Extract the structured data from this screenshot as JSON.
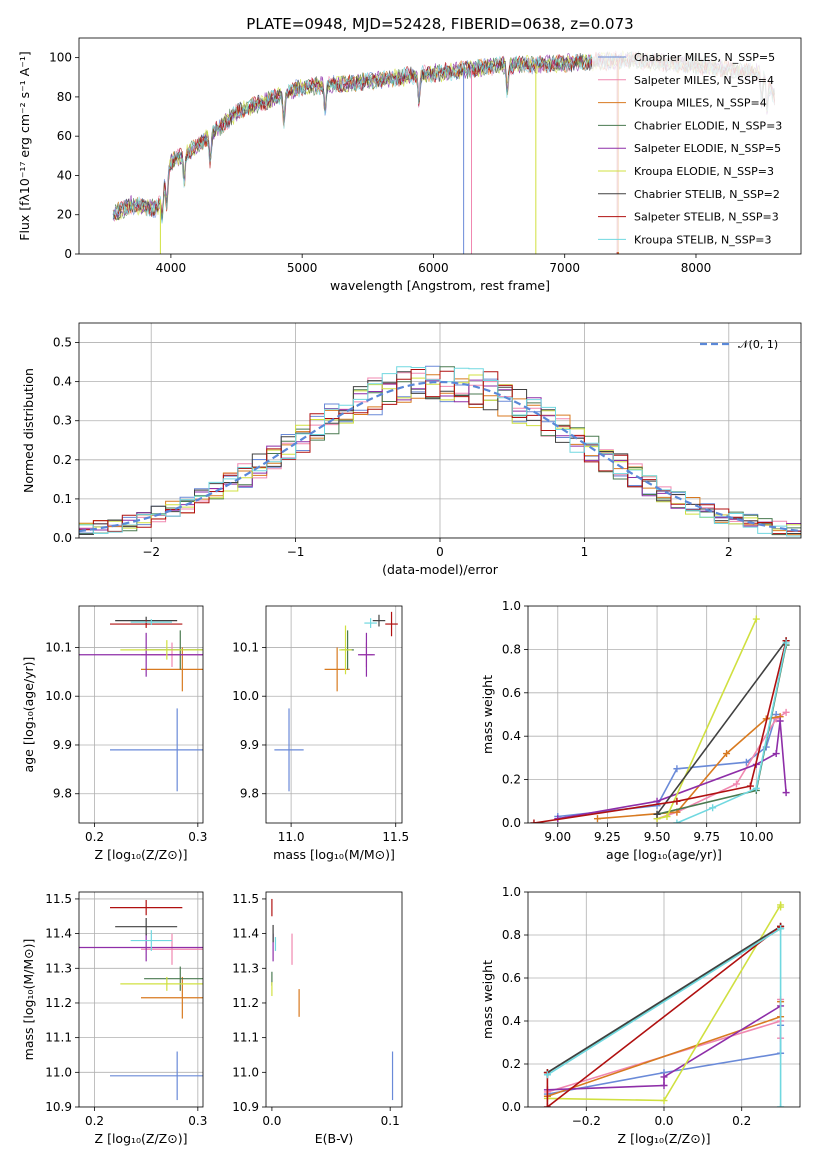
{
  "figure": {
    "title": "PLATE=0948, MJD=52428, FIBERID=0638, z=0.073"
  },
  "series_styles": [
    {
      "name": "Chabrier MILES",
      "nssp": "5",
      "color": "#6a8ad8"
    },
    {
      "name": "Salpeter MILES",
      "nssp": "4",
      "color": "#f088b0"
    },
    {
      "name": "Kroupa MILES",
      "nssp": "4",
      "color": "#d87a20"
    },
    {
      "name": "Chabrier ELODIE",
      "nssp": "3",
      "color": "#4a7a50"
    },
    {
      "name": "Salpeter ELODIE",
      "nssp": "5",
      "color": "#8e2ea8"
    },
    {
      "name": "Kroupa ELODIE",
      "nssp": "3",
      "color": "#d0e040"
    },
    {
      "name": "Chabrier STELIB",
      "nssp": "2",
      "color": "#404040"
    },
    {
      "name": "Salpeter STELIB",
      "nssp": "3",
      "color": "#b01010"
    },
    {
      "name": "Kroupa STELIB",
      "nssp": "3",
      "color": "#70d8e0"
    }
  ],
  "chart_data": [
    {
      "id": "spectrum",
      "type": "line",
      "xlabel": "wavelength [Angstrom, rest frame]",
      "ylabel": "Flux [fλ10⁻¹⁷ erg cm⁻² s⁻¹ A⁻¹]",
      "xlim": [
        3300,
        8800
      ],
      "ylim": [
        0,
        110
      ],
      "xticks": [
        "4000",
        "5000",
        "6000",
        "7000",
        "8000"
      ],
      "yticks": [
        "0",
        "20",
        "40",
        "60",
        "80",
        "100"
      ],
      "legend_placement": "right",
      "legend": [
        "Chabrier MILES, N_SSP=5",
        "Salpeter MILES, N_SSP=4",
        "Kroupa MILES, N_SSP=4",
        "Chabrier ELODIE, N_SSP=3",
        "Salpeter ELODIE, N_SSP=5",
        "Kroupa ELODIE, N_SSP=3",
        "Chabrier STELIB, N_SSP=2",
        "Salpeter STELIB, N_SSP=3",
        "Kroupa STELIB, N_SSP=3"
      ],
      "continuum_x": [
        3560,
        3700,
        3900,
        4000,
        4200,
        4500,
        5000,
        5500,
        6000,
        6500,
        7000,
        7500,
        8000,
        8500,
        8600
      ],
      "continuum_y": [
        20,
        25,
        23,
        47,
        55,
        72,
        85,
        88,
        92,
        96,
        97,
        99,
        96,
        92,
        80
      ],
      "features_x": [
        3934,
        3969,
        4102,
        4300,
        4861,
        5175,
        5890,
        6563,
        8500,
        8542
      ],
      "spikes": [
        {
          "series": "Kroupa ELODIE",
          "x": 3920,
          "y": 0
        },
        {
          "series": "Chabrier MILES",
          "x": 6230,
          "y": 0
        },
        {
          "series": "Salpeter MILES",
          "x": 6290,
          "y": 0
        },
        {
          "series": "Kroupa ELODIE",
          "x": 6780,
          "y": 0
        },
        {
          "series": "Salpeter STELIB",
          "x": 7400,
          "y": 0
        },
        {
          "series": "Kroupa MILES",
          "x": 7410,
          "y": 0
        }
      ]
    },
    {
      "id": "residuals",
      "type": "bar",
      "xlabel": "(data-model)/error",
      "ylabel": "Normed distribution",
      "xlim": [
        -2.5,
        2.5
      ],
      "ylim": [
        0,
        0.55
      ],
      "xticks": [
        "−2",
        "−1",
        "0",
        "1",
        "2"
      ],
      "yticks": [
        "0.0",
        "0.1",
        "0.2",
        "0.3",
        "0.4",
        "0.5"
      ],
      "grid": true,
      "legend_placement": "top-right",
      "legend": [
        "𝒩(0, 1)"
      ],
      "bin_width": 0.1,
      "bin_start": -2.5
    },
    {
      "id": "age-vs-Z",
      "type": "scatter",
      "xlabel": "Z [log₁₀(Z/Z⊙)]",
      "ylabel": "age  [log₁₀(age/yr)]",
      "xlim": [
        0.185,
        0.305
      ],
      "ylim": [
        9.74,
        10.185
      ],
      "xticks": [
        "0.2",
        "0.3"
      ],
      "yticks": [
        "9.8",
        "9.9",
        "10.0",
        "10.1"
      ],
      "grid": true,
      "points": [
        {
          "series": "Chabrier MILES",
          "x": 0.28,
          "y": 9.89,
          "xerr": 0.065,
          "yerr": 0.085
        },
        {
          "series": "Salpeter MILES",
          "x": 0.275,
          "y": 10.085,
          "xerr": 0.03,
          "yerr": 0.025
        },
        {
          "series": "Kroupa MILES",
          "x": 0.285,
          "y": 10.055,
          "xerr": 0.04,
          "yerr": 0.045
        },
        {
          "series": "Chabrier ELODIE",
          "x": 0.283,
          "y": 10.095,
          "xerr": 0.035,
          "yerr": 0.04
        },
        {
          "series": "Salpeter ELODIE",
          "x": 0.25,
          "y": 10.085,
          "xerr": 0.07,
          "yerr": 0.045
        },
        {
          "series": "Kroupa ELODIE",
          "x": 0.27,
          "y": 10.095,
          "xerr": 0.045,
          "yerr": 0.02
        },
        {
          "series": "Chabrier STELIB",
          "x": 0.25,
          "y": 10.155,
          "xerr": 0.03,
          "yerr": 0.008
        },
        {
          "series": "Salpeter STELIB",
          "x": 0.25,
          "y": 10.148,
          "xerr": 0.035,
          "yerr": 0.008
        },
        {
          "series": "Kroupa STELIB",
          "x": 0.255,
          "y": 10.152,
          "xerr": 0.02,
          "yerr": 0.006
        }
      ]
    },
    {
      "id": "age-vs-mass",
      "type": "scatter",
      "xlabel": "mass [log₁₀(M/M⊙)]",
      "ylabel": "",
      "xlim": [
        10.88,
        11.53
      ],
      "ylim": [
        9.74,
        10.185
      ],
      "xticks": [
        "11.0",
        "11.5"
      ],
      "yticks": [
        "9.8",
        "9.9",
        "10.0",
        "10.1"
      ],
      "grid": true,
      "points": [
        {
          "series": "Chabrier MILES",
          "x": 10.99,
          "y": 9.89,
          "xerr": 0.07,
          "yerr": 0.085
        },
        {
          "series": "Salpeter MILES",
          "x": 11.36,
          "y": 10.085,
          "xerr": 0.03,
          "yerr": 0.025
        },
        {
          "series": "Kroupa MILES",
          "x": 11.22,
          "y": 10.055,
          "xerr": 0.06,
          "yerr": 0.045
        },
        {
          "series": "Chabrier ELODIE",
          "x": 11.27,
          "y": 10.095,
          "xerr": 0.03,
          "yerr": 0.04
        },
        {
          "series": "Salpeter ELODIE",
          "x": 11.36,
          "y": 10.085,
          "xerr": 0.04,
          "yerr": 0.045
        },
        {
          "series": "Kroupa ELODIE",
          "x": 11.26,
          "y": 10.095,
          "xerr": 0.03,
          "yerr": 0.05
        },
        {
          "series": "Chabrier STELIB",
          "x": 11.42,
          "y": 10.155,
          "xerr": 0.03,
          "yerr": 0.012
        },
        {
          "series": "Salpeter STELIB",
          "x": 11.48,
          "y": 10.148,
          "xerr": 0.03,
          "yerr": 0.025
        },
        {
          "series": "Kroupa STELIB",
          "x": 11.38,
          "y": 10.15,
          "xerr": 0.03,
          "yerr": 0.01
        }
      ]
    },
    {
      "id": "weight-vs-age",
      "type": "line",
      "xlabel": "age  [log₁₀(age/yr)]",
      "ylabel": "mass weight",
      "xlim": [
        8.85,
        10.22
      ],
      "ylim": [
        0,
        1
      ],
      "xticks": [
        "9.00",
        "9.25",
        "9.50",
        "9.75",
        "10.00"
      ],
      "yticks": [
        "0.0",
        "0.2",
        "0.4",
        "0.6",
        "0.8",
        "1.0"
      ],
      "grid": true,
      "series": [
        {
          "name": "Chabrier MILES",
          "x": [
            9.0,
            9.5,
            9.6,
            9.95,
            10.05,
            10.1
          ],
          "y": [
            0.03,
            0.08,
            0.25,
            0.28,
            0.35,
            0.5
          ]
        },
        {
          "name": "Salpeter MILES",
          "x": [
            9.5,
            9.6,
            9.9,
            10.1,
            10.15
          ],
          "y": [
            0.02,
            0.05,
            0.18,
            0.48,
            0.51
          ]
        },
        {
          "name": "Kroupa MILES",
          "x": [
            9.2,
            9.6,
            9.85,
            10.05,
            10.12
          ],
          "y": [
            0.02,
            0.05,
            0.32,
            0.48,
            0.49
          ]
        },
        {
          "name": "Chabrier ELODIE",
          "x": [
            9.5,
            10.0,
            10.15
          ],
          "y": [
            0.04,
            0.15,
            0.82
          ]
        },
        {
          "name": "Salpeter ELODIE",
          "x": [
            9.0,
            9.5,
            10.0,
            10.1,
            10.12,
            10.15
          ],
          "y": [
            0.02,
            0.1,
            0.27,
            0.32,
            0.47,
            0.14
          ]
        },
        {
          "name": "Kroupa ELODIE",
          "x": [
            9.5,
            9.55,
            10.0
          ],
          "y": [
            0.02,
            0.03,
            0.94
          ]
        },
        {
          "name": "Chabrier STELIB",
          "x": [
            9.5,
            10.15
          ],
          "y": [
            0.04,
            0.84
          ]
        },
        {
          "name": "Salpeter STELIB",
          "x": [
            8.88,
            9.6,
            9.97,
            10.15
          ],
          "y": [
            0.0,
            0.1,
            0.17,
            0.84
          ]
        },
        {
          "name": "Kroupa STELIB",
          "x": [
            9.6,
            9.78,
            10.0,
            10.15
          ],
          "y": [
            0.0,
            0.07,
            0.16,
            0.83
          ]
        }
      ]
    },
    {
      "id": "mass-vs-Z",
      "type": "scatter",
      "xlabel": "Z [log₁₀(Z/Z⊙)]",
      "ylabel": "mass [log₁₀(M/M⊙)]",
      "xlim": [
        0.185,
        0.305
      ],
      "ylim": [
        10.9,
        11.52
      ],
      "xticks": [
        "0.2",
        "0.3"
      ],
      "yticks": [
        "10.9",
        "11.0",
        "11.1",
        "11.2",
        "11.3",
        "11.4",
        "11.5"
      ],
      "grid": true,
      "points": [
        {
          "series": "Chabrier MILES",
          "x": 0.28,
          "y": 10.99,
          "xerr": 0.065,
          "yerr": 0.07
        },
        {
          "series": "Salpeter MILES",
          "x": 0.275,
          "y": 11.355,
          "xerr": 0.03,
          "yerr": 0.045
        },
        {
          "series": "Kroupa MILES",
          "x": 0.285,
          "y": 11.215,
          "xerr": 0.04,
          "yerr": 0.06
        },
        {
          "series": "Chabrier ELODIE",
          "x": 0.283,
          "y": 11.27,
          "xerr": 0.035,
          "yerr": 0.035
        },
        {
          "series": "Salpeter ELODIE",
          "x": 0.25,
          "y": 11.36,
          "xerr": 0.07,
          "yerr": 0.04
        },
        {
          "series": "Kroupa ELODIE",
          "x": 0.27,
          "y": 11.255,
          "xerr": 0.045,
          "yerr": 0.02
        },
        {
          "series": "Chabrier STELIB",
          "x": 0.25,
          "y": 11.42,
          "xerr": 0.03,
          "yerr": 0.025
        },
        {
          "series": "Salpeter STELIB",
          "x": 0.25,
          "y": 11.475,
          "xerr": 0.035,
          "yerr": 0.022
        },
        {
          "series": "Kroupa STELIB",
          "x": 0.255,
          "y": 11.38,
          "xerr": 0.02,
          "yerr": 0.03
        }
      ]
    },
    {
      "id": "mass-vs-EBV",
      "type": "scatter",
      "xlabel": "E(B-V)",
      "ylabel": "",
      "xlim": [
        -0.005,
        0.11
      ],
      "ylim": [
        10.9,
        11.52
      ],
      "xticks": [
        "0.0",
        "0.1"
      ],
      "yticks": [
        "10.9",
        "11.0",
        "11.1",
        "11.2",
        "11.3",
        "11.4",
        "11.5"
      ],
      "grid": false,
      "points": [
        {
          "series": "Chabrier MILES",
          "x": 0.102,
          "y": 10.99,
          "xerr": 0.0,
          "yerr": 0.07
        },
        {
          "series": "Salpeter MILES",
          "x": 0.017,
          "y": 11.355,
          "xerr": 0.0,
          "yerr": 0.045
        },
        {
          "series": "Kroupa MILES",
          "x": 0.023,
          "y": 11.2,
          "xerr": 0.0,
          "yerr": 0.04
        },
        {
          "series": "Chabrier ELODIE",
          "x": 0.0,
          "y": 11.27,
          "xerr": 0.0,
          "yerr": 0.02
        },
        {
          "series": "Salpeter ELODIE",
          "x": 0.001,
          "y": 11.36,
          "xerr": 0.0,
          "yerr": 0.04
        },
        {
          "series": "Kroupa ELODIE",
          "x": 0.0,
          "y": 11.24,
          "xerr": 0.0,
          "yerr": 0.02
        },
        {
          "series": "Chabrier STELIB",
          "x": 0.001,
          "y": 11.4,
          "xerr": 0.0,
          "yerr": 0.025
        },
        {
          "series": "Salpeter STELIB",
          "x": 0.0,
          "y": 11.475,
          "xerr": 0.0,
          "yerr": 0.025
        },
        {
          "series": "Kroupa STELIB",
          "x": 0.003,
          "y": 11.37,
          "xerr": 0.0,
          "yerr": 0.02
        }
      ]
    },
    {
      "id": "weight-vs-Z",
      "type": "line",
      "xlabel": "Z [log₁₀(Z/Z⊙)]",
      "ylabel": "mass weight",
      "xlim": [
        -0.35,
        0.35
      ],
      "ylim": [
        0,
        1
      ],
      "xticks": [
        "−0.2",
        "0.0",
        "0.2"
      ],
      "yticks": [
        "0.0",
        "0.2",
        "0.4",
        "0.6",
        "0.8",
        "1.0"
      ],
      "grid": true,
      "series": [
        {
          "name": "Chabrier MILES",
          "x": [
            -0.3,
            0.0,
            0.3,
            0.3
          ],
          "y": [
            0.06,
            0.16,
            0.25,
            0.38
          ]
        },
        {
          "name": "Salpeter MILES",
          "x": [
            -0.3,
            0.3,
            0.3,
            0.3
          ],
          "y": [
            0.07,
            0.4,
            0.5,
            0.32
          ]
        },
        {
          "name": "Kroupa MILES",
          "x": [
            -0.3,
            0.3,
            0.3
          ],
          "y": [
            0.05,
            0.42,
            0.49
          ]
        },
        {
          "name": "Chabrier ELODIE",
          "x": [
            -0.3,
            0.3,
            0.3
          ],
          "y": [
            0.16,
            0.83,
            0.84
          ]
        },
        {
          "name": "Salpeter ELODIE",
          "x": [
            -0.3,
            0.0,
            0.0,
            0.3
          ],
          "y": [
            0.08,
            0.1,
            0.14,
            0.47
          ]
        },
        {
          "name": "Kroupa ELODIE",
          "x": [
            -0.3,
            0.0,
            0.3,
            0.3
          ],
          "y": [
            0.04,
            0.03,
            0.94,
            0.93
          ]
        },
        {
          "name": "Chabrier STELIB",
          "x": [
            -0.3,
            0.3
          ],
          "y": [
            0.16,
            0.84
          ]
        },
        {
          "name": "Salpeter STELIB",
          "x": [
            -0.3,
            -0.3,
            0.3
          ],
          "y": [
            0.16,
            0.0,
            0.84
          ]
        },
        {
          "name": "Kroupa STELIB",
          "x": [
            -0.3,
            0.3,
            0.3
          ],
          "y": [
            0.15,
            0.83,
            0.0
          ]
        }
      ]
    }
  ]
}
